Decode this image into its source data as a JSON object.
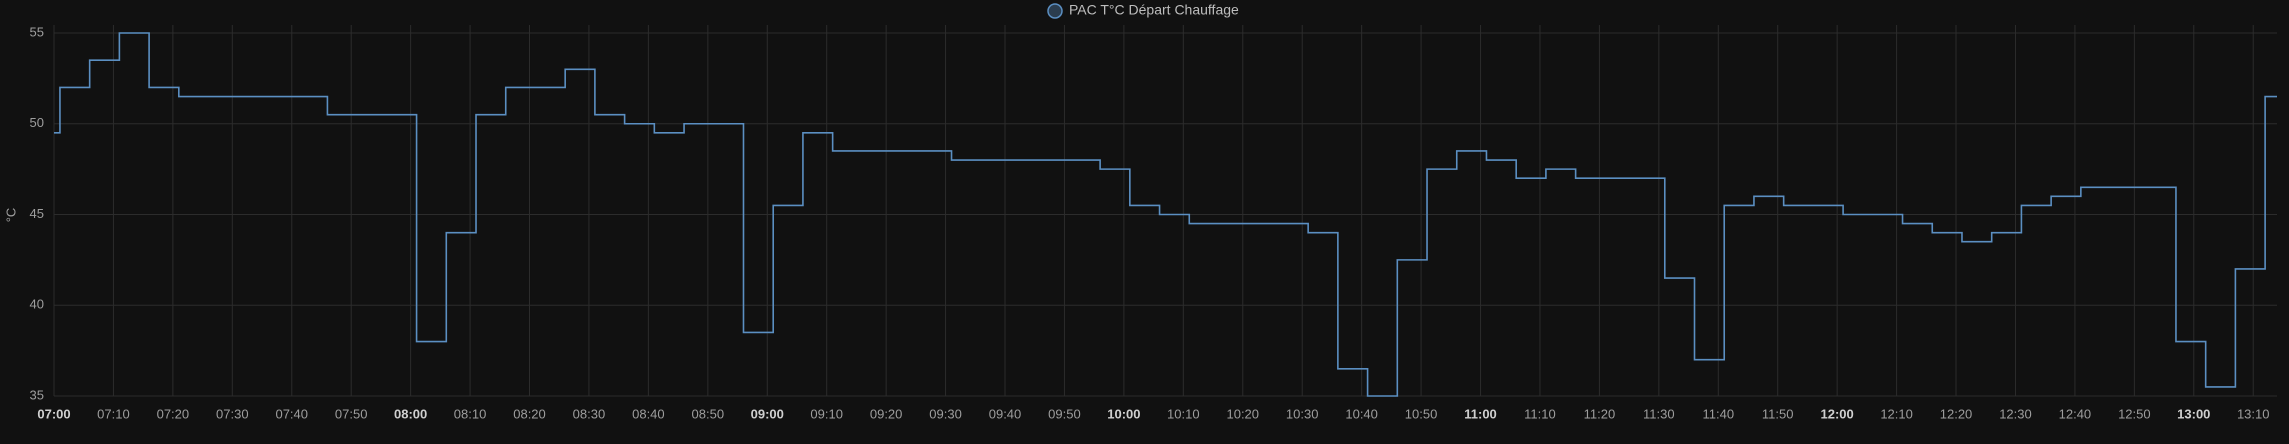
{
  "chart_data": {
    "type": "line",
    "step": true,
    "ylabel": "°C",
    "grid": true,
    "xlim": [
      "07:00",
      "13:14"
    ],
    "xticks": [
      "07:00",
      "07:10",
      "07:20",
      "07:30",
      "07:40",
      "07:50",
      "08:00",
      "08:10",
      "08:20",
      "08:30",
      "08:40",
      "08:50",
      "09:00",
      "09:10",
      "09:20",
      "09:30",
      "09:40",
      "09:50",
      "10:00",
      "10:10",
      "10:20",
      "10:30",
      "10:40",
      "10:50",
      "11:00",
      "11:10",
      "11:20",
      "11:30",
      "11:40",
      "11:50",
      "12:00",
      "12:10",
      "12:20",
      "12:30",
      "12:40",
      "12:50",
      "13:00",
      "13:10"
    ],
    "ylim": [
      35,
      55
    ],
    "yticks": [
      35,
      40,
      45,
      50,
      55
    ],
    "x": [
      "07:00",
      "07:01",
      "07:06",
      "07:11",
      "07:16",
      "07:21",
      "07:46",
      "08:01",
      "08:06",
      "08:11",
      "08:16",
      "08:26",
      "08:31",
      "08:36",
      "08:41",
      "08:46",
      "08:56",
      "09:01",
      "09:06",
      "09:11",
      "09:31",
      "09:56",
      "10:01",
      "10:06",
      "10:11",
      "10:31",
      "10:36",
      "10:41",
      "10:46",
      "10:51",
      "10:56",
      "11:01",
      "11:06",
      "11:11",
      "11:16",
      "11:31",
      "11:36",
      "11:41",
      "11:46",
      "11:51",
      "12:01",
      "12:11",
      "12:16",
      "12:21",
      "12:26",
      "12:31",
      "12:36",
      "12:41",
      "12:57",
      "13:02",
      "13:07",
      "13:12"
    ],
    "series": [
      {
        "name": "PAC T°C Départ Chauffage",
        "color": "#5b8fc2",
        "values": [
          49.5,
          52,
          53.5,
          55,
          52,
          51.5,
          50.5,
          38,
          44,
          50.5,
          52,
          53,
          50.5,
          50,
          49.5,
          50,
          38.5,
          45.5,
          49.5,
          48.5,
          48,
          47.5,
          45.5,
          45,
          44.5,
          44,
          36.5,
          35,
          42.5,
          47.5,
          48.5,
          48,
          47,
          47.5,
          47,
          41.5,
          37,
          45.5,
          46,
          45.5,
          45,
          44.5,
          44,
          43.5,
          44,
          45.5,
          46,
          46.5,
          38,
          35.5,
          42,
          51.5
        ]
      }
    ]
  }
}
